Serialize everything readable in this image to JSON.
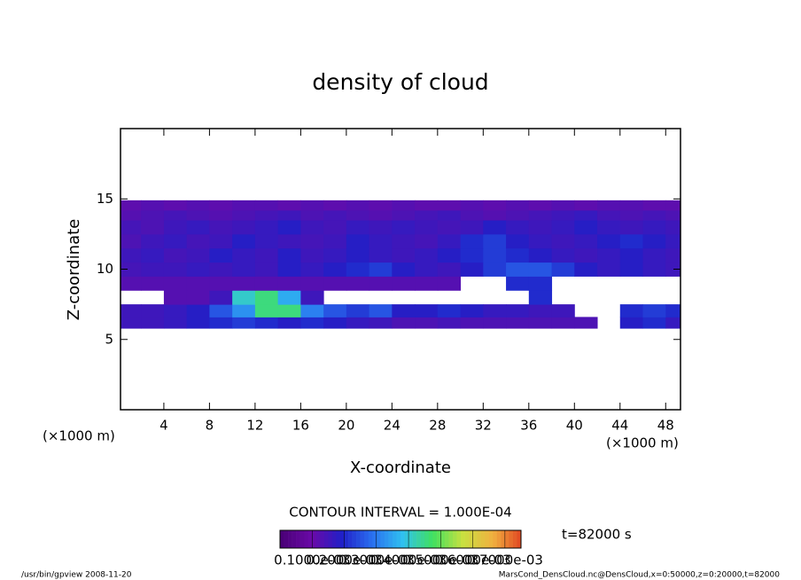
{
  "chart_data": {
    "type": "heatmap",
    "title": "density of cloud",
    "x_label": "X-coordinate",
    "y_label": "Z-coordinate",
    "x_unit": "(×1000 m)",
    "y_unit": "(×1000 m)",
    "xlim": [
      0.2,
      49.3
    ],
    "ylim": [
      0,
      20
    ],
    "xticks": [
      4,
      8,
      12,
      16,
      20,
      24,
      28,
      32,
      36,
      40,
      44,
      48
    ],
    "yticks": [
      5,
      10,
      15
    ],
    "x_edges": [
      0,
      2,
      4,
      6,
      8,
      10,
      12,
      14,
      16,
      18,
      20,
      22,
      24,
      26,
      28,
      30,
      32,
      34,
      36,
      38,
      40,
      42,
      44,
      46,
      48,
      50
    ],
    "z_edges": [
      5.8,
      6.6,
      7.5,
      8.5,
      9.5,
      10.5,
      11.5,
      12.5,
      13.5,
      14.2,
      14.9
    ],
    "values": [
      [
        0.00015,
        0.00015,
        0.00016,
        0.00018,
        0.0002,
        0.00022,
        0.0002,
        0.00018,
        0.0002,
        0.00018,
        0.00016,
        0.00015,
        0.00013,
        0.00013,
        0.00014,
        0.00013,
        0.00013,
        0.00013,
        0.00013,
        0.00013,
        0.00013,
        null,
        0.00018,
        0.0002,
        0.00016
      ],
      [
        0.00015,
        0.00015,
        0.00016,
        0.00018,
        0.00025,
        0.00032,
        0.00045,
        0.00045,
        0.0003,
        0.00025,
        0.00022,
        0.00025,
        0.00018,
        0.00018,
        0.0002,
        0.00018,
        0.00016,
        0.00016,
        0.00015,
        0.00015,
        null,
        null,
        0.0002,
        0.00022,
        0.0002
      ],
      [
        null,
        null,
        0.00012,
        0.00012,
        0.00015,
        0.0004,
        0.00045,
        0.00035,
        0.00015,
        null,
        null,
        null,
        null,
        null,
        null,
        null,
        null,
        null,
        0.0002,
        null,
        null,
        null,
        null,
        null,
        null
      ],
      [
        0.00012,
        0.00012,
        0.00012,
        0.00012,
        0.00012,
        0.00012,
        0.00012,
        0.00012,
        0.00012,
        0.00012,
        0.00012,
        0.00012,
        0.00012,
        0.00012,
        0.00012,
        null,
        null,
        0.0002,
        0.0002,
        null,
        null,
        null,
        null,
        null,
        null
      ],
      [
        0.00014,
        0.00015,
        0.00015,
        0.00016,
        0.00015,
        0.00016,
        0.00015,
        0.00018,
        0.00016,
        0.00018,
        0.0002,
        0.00022,
        0.00018,
        0.00016,
        0.00015,
        0.00018,
        0.00022,
        0.00025,
        0.00025,
        0.00022,
        0.00018,
        0.00016,
        0.00018,
        0.00016,
        0.00015
      ],
      [
        0.00015,
        0.00016,
        0.00014,
        0.00015,
        0.00018,
        0.00016,
        0.00015,
        0.00018,
        0.00015,
        0.00016,
        0.00018,
        0.00016,
        0.00015,
        0.00016,
        0.00018,
        0.0002,
        0.00022,
        0.0002,
        0.00018,
        0.00016,
        0.00015,
        0.00016,
        0.00018,
        0.00016,
        0.00015
      ],
      [
        0.00013,
        0.00015,
        0.00016,
        0.00014,
        0.00015,
        0.00018,
        0.00016,
        0.00015,
        0.00014,
        0.00015,
        0.00018,
        0.00016,
        0.00015,
        0.00014,
        0.00016,
        0.0002,
        0.00022,
        0.00018,
        0.00016,
        0.00015,
        0.00016,
        0.00018,
        0.0002,
        0.00018,
        0.00016
      ],
      [
        0.00014,
        0.00013,
        0.00015,
        0.00016,
        0.00014,
        0.00015,
        0.00016,
        0.00018,
        0.00015,
        0.00014,
        0.00016,
        0.00015,
        0.00016,
        0.00015,
        0.00014,
        0.00015,
        0.00018,
        0.00016,
        0.00015,
        0.00016,
        0.00018,
        0.00016,
        0.00015,
        0.00016,
        0.00015
      ],
      [
        0.00012,
        0.00013,
        0.00014,
        0.00013,
        0.00012,
        0.00013,
        0.00014,
        0.00015,
        0.00013,
        0.00014,
        0.00013,
        0.00012,
        0.00013,
        0.00014,
        0.00015,
        0.00013,
        0.00012,
        0.00013,
        0.00014,
        0.00015,
        0.00016,
        0.00014,
        0.00013,
        0.00014,
        0.00013
      ],
      [
        0.00011,
        0.00012,
        0.00011,
        0.00012,
        0.00011,
        0.00012,
        0.00012,
        0.00011,
        0.00012,
        0.00011,
        0.00012,
        0.00011,
        0.00012,
        0.00011,
        0.00011,
        0.00012,
        0.00011,
        0.00012,
        0.00011,
        0.00012,
        0.00011,
        0.00012,
        0.00012,
        0.00011,
        0.00011
      ]
    ],
    "colormap": [
      "#4b0078",
      "#6a0aa8",
      "#2020c8",
      "#2a70f0",
      "#30c0f0",
      "#40e060",
      "#c8e040",
      "#f0b040",
      "#e04020"
    ],
    "clim": [
      0,
      0.00075
    ],
    "contour_interval": "CONTOUR INTERVAL = 1.000E-04",
    "time_label": "t=82000 s",
    "colorbar_ticks": [
      {
        "value": 0.0001,
        "label": "0.1000e-03"
      },
      {
        "value": 0.0002,
        "label": "0.2000e-03"
      },
      {
        "value": 0.0003,
        "label": "0.3000e-03"
      },
      {
        "value": 0.0004,
        "label": "0.4000e-03"
      },
      {
        "value": 0.0005,
        "label": "0.5000e-03"
      },
      {
        "value": 0.0006,
        "label": "0.6000e-03"
      },
      {
        "value": 0.0007,
        "label": "0.7000e-03"
      }
    ],
    "footer_left": "/usr/bin/gpview  2008-11-20",
    "footer_right": "MarsCond_DensCloud.nc@DensCloud,x=0:50000,z=0:20000,t=82000"
  }
}
